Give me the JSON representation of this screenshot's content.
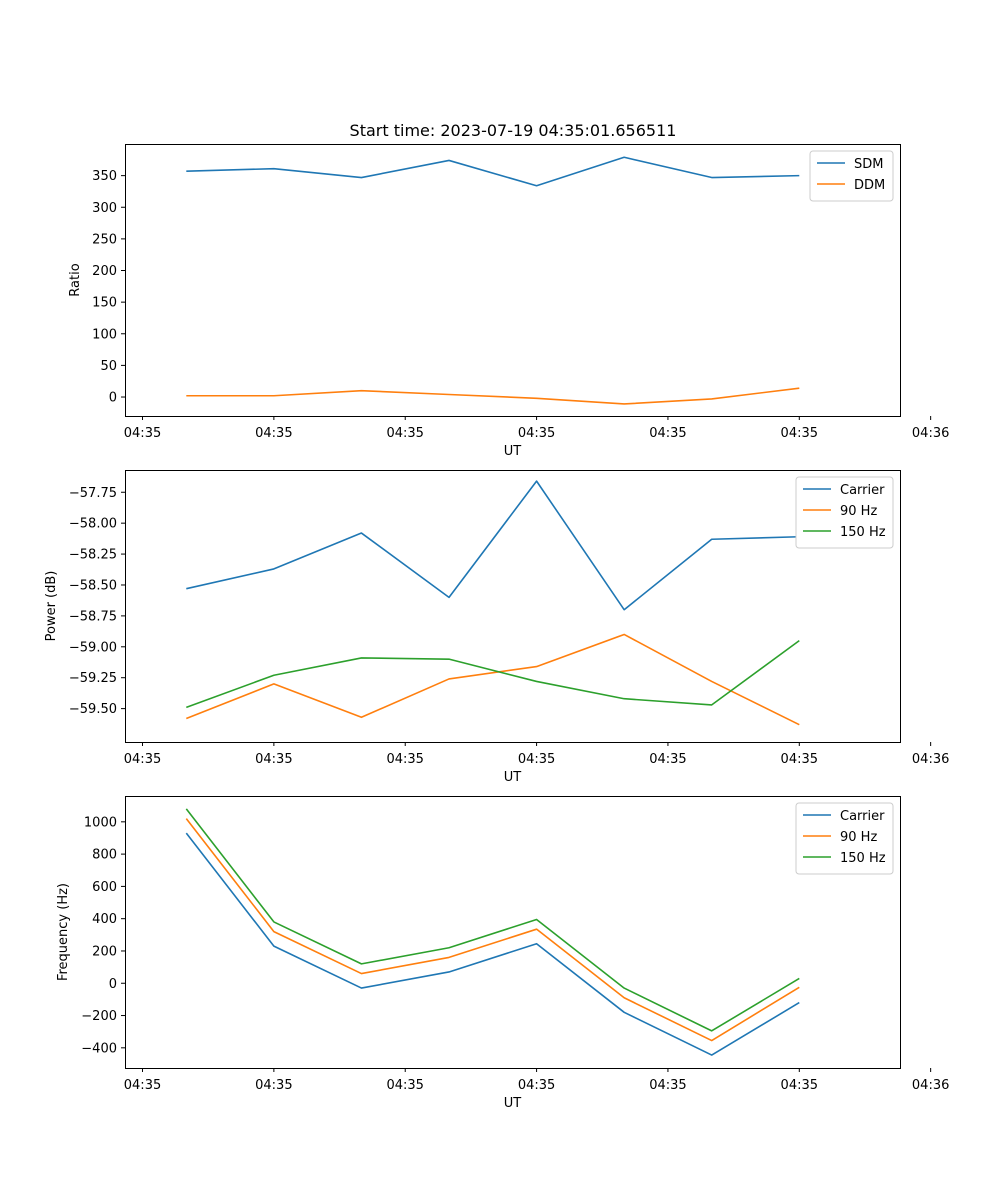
{
  "figure": {
    "title": "Start time: 2023-07-19 04:35:01.656511"
  },
  "chart_data": [
    {
      "type": "line",
      "title": "Start time: 2023-07-19 04:35:01.656511",
      "xlabel": "UT",
      "ylabel": "Ratio",
      "x": [
        1,
        2,
        3,
        4,
        5,
        6,
        7,
        8
      ],
      "xlim": [
        0.3,
        9.15
      ],
      "x_ticks": [
        0.5,
        2,
        3.5,
        5,
        6.5,
        8,
        9.5
      ],
      "x_tick_labels": [
        "04:35",
        "04:35",
        "04:35",
        "04:35",
        "04:35",
        "04:35",
        "04:36"
      ],
      "ylim": [
        -30,
        400
      ],
      "y_ticks": [
        0,
        50,
        100,
        150,
        200,
        250,
        300,
        350
      ],
      "y_tick_labels": [
        "0",
        "50",
        "100",
        "150",
        "200",
        "250",
        "300",
        "350"
      ],
      "legend_position": "top-right",
      "series": [
        {
          "name": "SDM",
          "color": "#1f77b4",
          "values": [
            357,
            361,
            347,
            374,
            334,
            379,
            347,
            350
          ]
        },
        {
          "name": "DDM",
          "color": "#ff7f0e",
          "values": [
            2,
            2,
            10,
            4,
            -2,
            -11,
            -3,
            14
          ]
        }
      ]
    },
    {
      "type": "line",
      "xlabel": "UT",
      "ylabel": "Power (dB)",
      "x": [
        1,
        2,
        3,
        4,
        5,
        6,
        7,
        8
      ],
      "xlim": [
        0.3,
        9.15
      ],
      "x_ticks": [
        0.5,
        2,
        3.5,
        5,
        6.5,
        8,
        9.5
      ],
      "x_tick_labels": [
        "04:35",
        "04:35",
        "04:35",
        "04:35",
        "04:35",
        "04:35",
        "04:36"
      ],
      "ylim": [
        -59.77,
        -57.57
      ],
      "y_ticks": [
        -59.5,
        -59.25,
        -59.0,
        -58.75,
        -58.5,
        -58.25,
        -58.0,
        -57.75
      ],
      "y_tick_labels": [
        "−59.50",
        "−59.25",
        "−59.00",
        "−58.75",
        "−58.50",
        "−58.25",
        "−58.00",
        "−57.75"
      ],
      "legend_position": "top-right",
      "series": [
        {
          "name": "Carrier",
          "color": "#1f77b4",
          "values": [
            -58.53,
            -58.37,
            -58.08,
            -58.6,
            -57.66,
            -58.7,
            -58.13,
            -58.11
          ]
        },
        {
          "name": "90 Hz",
          "color": "#ff7f0e",
          "values": [
            -59.58,
            -59.3,
            -59.57,
            -59.26,
            -59.16,
            -58.9,
            -59.28,
            -59.63
          ]
        },
        {
          "name": "150 Hz",
          "color": "#2ca02c",
          "values": [
            -59.49,
            -59.23,
            -59.09,
            -59.1,
            -59.28,
            -59.42,
            -59.47,
            -58.95
          ]
        }
      ]
    },
    {
      "type": "line",
      "xlabel": "UT",
      "ylabel": "Frequency (Hz)",
      "x": [
        1,
        2,
        3,
        4,
        5,
        6,
        7,
        8
      ],
      "xlim": [
        0.3,
        9.15
      ],
      "x_ticks": [
        0.5,
        2,
        3.5,
        5,
        6.5,
        8,
        9.5
      ],
      "x_tick_labels": [
        "04:35",
        "04:35",
        "04:35",
        "04:35",
        "04:35",
        "04:35",
        "04:36"
      ],
      "ylim": [
        -525,
        1160
      ],
      "y_ticks": [
        -400,
        -200,
        0,
        200,
        400,
        600,
        800,
        1000
      ],
      "y_tick_labels": [
        "−400",
        "−200",
        "0",
        "200",
        "400",
        "600",
        "800",
        "1000"
      ],
      "legend_position": "top-right",
      "series": [
        {
          "name": "Carrier",
          "color": "#1f77b4",
          "values": [
            930,
            230,
            -30,
            70,
            245,
            -180,
            -445,
            -120
          ]
        },
        {
          "name": "90 Hz",
          "color": "#ff7f0e",
          "values": [
            1020,
            320,
            60,
            160,
            335,
            -90,
            -355,
            -25
          ]
        },
        {
          "name": "150 Hz",
          "color": "#2ca02c",
          "values": [
            1080,
            380,
            120,
            220,
            395,
            -30,
            -295,
            30
          ]
        }
      ]
    }
  ]
}
